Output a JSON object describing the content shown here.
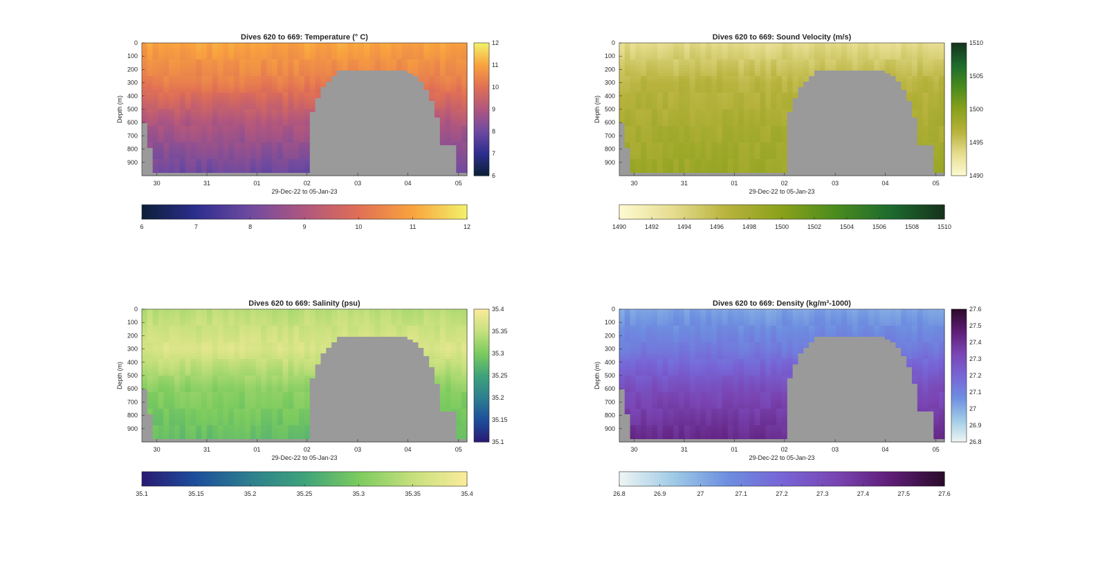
{
  "figure": {
    "background": "#ffffff",
    "nodata_color": "#9a9a9a"
  },
  "chart_data": [
    {
      "type": "heatmap",
      "variable": "temperature",
      "title": "Dives 620 to 669: Temperature (° C)",
      "xlabel": "29-Dec-22 to 05-Jan-23",
      "ylabel": "Depth (m)",
      "x_ticks": [
        "30",
        "31",
        "01",
        "02",
        "03",
        "04",
        "05"
      ],
      "y_ticks": [
        "0",
        "100",
        "200",
        "300",
        "400",
        "500",
        "600",
        "700",
        "800",
        "900"
      ],
      "ylim": [
        0,
        1000
      ],
      "y_reversed": true,
      "colorscale": [
        "#0b1f36",
        "#2d2e8f",
        "#6f4aa0",
        "#b0567f",
        "#e06f55",
        "#f9a33e",
        "#f2f26a"
      ],
      "clim": [
        6,
        12
      ],
      "colorbar_ticks": [
        "6",
        "7",
        "8",
        "9",
        "10",
        "11",
        "12"
      ],
      "horizontal_colorbar_ticks": [
        "6",
        "7",
        "8",
        "9",
        "10",
        "11",
        "12"
      ],
      "profile": {
        "surface": 11.0,
        "mid": 10.3,
        "deep": 9.0,
        "bottom": 7.9
      }
    },
    {
      "type": "heatmap",
      "variable": "sound_velocity",
      "title": "Dives 620 to 669: Sound Velocity (m/s)",
      "xlabel": "29-Dec-22 to 05-Jan-23",
      "ylabel": "Depth (m)",
      "x_ticks": [
        "30",
        "31",
        "01",
        "02",
        "03",
        "04",
        "05"
      ],
      "y_ticks": [
        "0",
        "100",
        "200",
        "300",
        "400",
        "500",
        "600",
        "700",
        "800",
        "900"
      ],
      "ylim": [
        0,
        1000
      ],
      "y_reversed": true,
      "colorscale": [
        "#fdfbd2",
        "#e6dc8e",
        "#b7b23c",
        "#8aa11b",
        "#4a8b1d",
        "#1d6b2e",
        "#16321c"
      ],
      "clim": [
        1490,
        1510
      ],
      "colorbar_ticks": [
        "1490",
        "1495",
        "1500",
        "1505",
        "1510"
      ],
      "horizontal_colorbar_ticks": [
        "1490",
        "1492",
        "1494",
        "1496",
        "1498",
        "1500",
        "1502",
        "1504",
        "1506",
        "1508",
        "1510"
      ],
      "profile": {
        "surface": 1493.4,
        "mid": 1496.5,
        "deep": 1497.6,
        "bottom": 1498.8
      }
    },
    {
      "type": "heatmap",
      "variable": "salinity",
      "title": "Dives 620 to 669: Salinity (psu)",
      "xlabel": "29-Dec-22 to 05-Jan-23",
      "ylabel": "Depth (m)",
      "x_ticks": [
        "30",
        "31",
        "01",
        "02",
        "03",
        "04",
        "05"
      ],
      "y_ticks": [
        "0",
        "100",
        "200",
        "300",
        "400",
        "500",
        "600",
        "700",
        "800",
        "900"
      ],
      "ylim": [
        0,
        1000
      ],
      "y_reversed": true,
      "colorscale": [
        "#2a1a73",
        "#1d4f9c",
        "#2d7f8e",
        "#3ea37a",
        "#7ccb5e",
        "#c6e07d",
        "#fbeb9b"
      ],
      "clim": [
        35.1,
        35.4
      ],
      "colorbar_ticks": [
        "35.1",
        "35.15",
        "35.2",
        "35.25",
        "35.3",
        "35.35",
        "35.4"
      ],
      "horizontal_colorbar_ticks": [
        "35.1",
        "35.15",
        "35.2",
        "35.25",
        "35.3",
        "35.35",
        "35.4"
      ],
      "profile": {
        "surface": 35.34,
        "mid": 35.37,
        "deep": 35.31,
        "bottom": 35.28
      }
    },
    {
      "type": "heatmap",
      "variable": "density",
      "title": "Dives 620 to 669: Density (kg/m³-1000)",
      "xlabel": "29-Dec-22 to 05-Jan-23",
      "ylabel": "Depth (m)",
      "x_ticks": [
        "30",
        "31",
        "01",
        "02",
        "03",
        "04",
        "05"
      ],
      "y_ticks": [
        "0",
        "100",
        "200",
        "300",
        "400",
        "500",
        "600",
        "700",
        "800",
        "900"
      ],
      "ylim": [
        0,
        1000
      ],
      "y_reversed": true,
      "colorscale": [
        "#eef5f3",
        "#9fcbe6",
        "#6d8ee0",
        "#7765d6",
        "#7a45b3",
        "#5e1d77",
        "#2a0a29"
      ],
      "clim": [
        26.8,
        27.6
      ],
      "colorbar_ticks": [
        "26.8",
        "26.9",
        "27",
        "27.1",
        "27.2",
        "27.3",
        "27.4",
        "27.5",
        "27.6"
      ],
      "horizontal_colorbar_ticks": [
        "26.8",
        "26.9",
        "27",
        "27.1",
        "27.2",
        "27.3",
        "27.4",
        "27.5",
        "27.6"
      ],
      "profile": {
        "surface": 27.02,
        "mid": 27.13,
        "deep": 27.3,
        "bottom": 27.43
      }
    }
  ]
}
